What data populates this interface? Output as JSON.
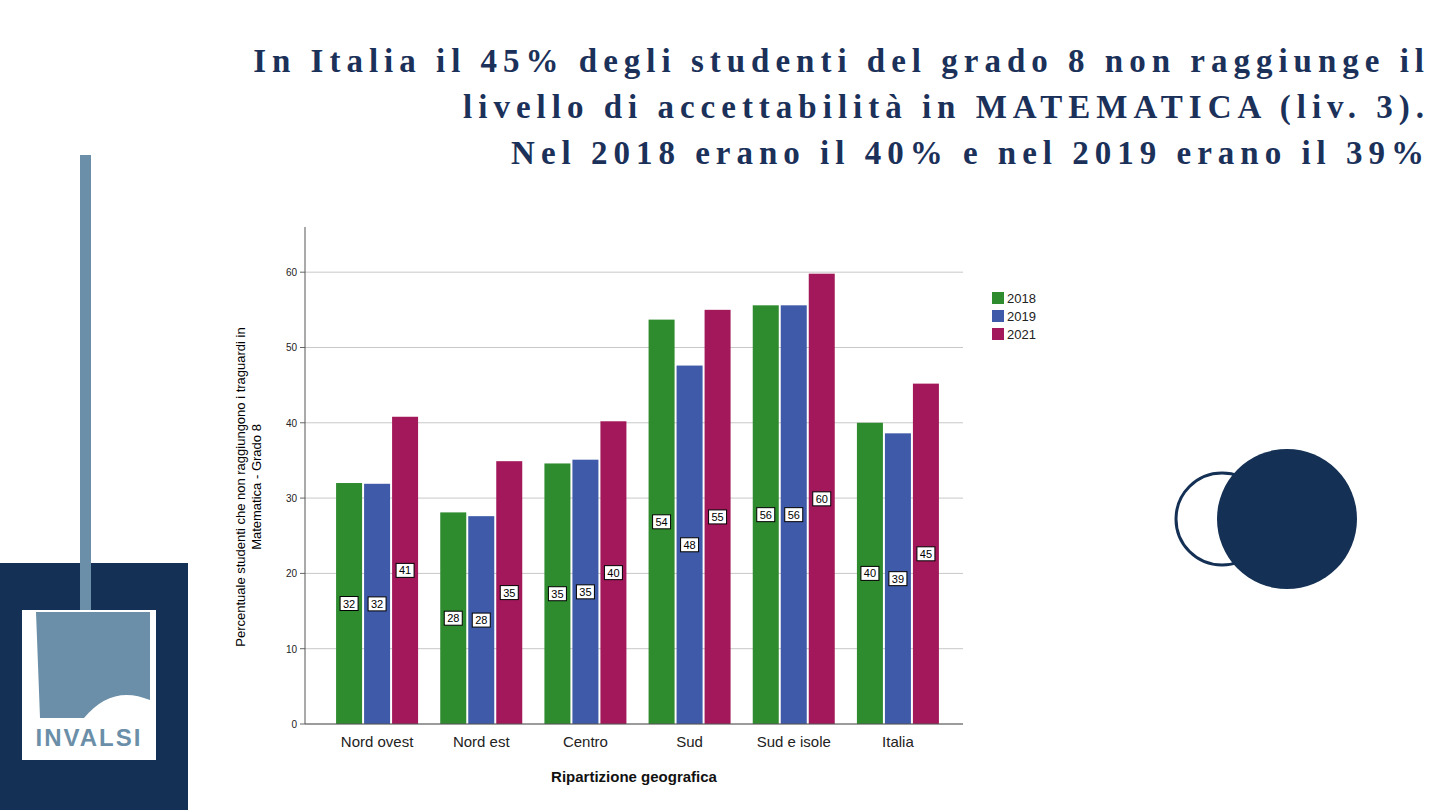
{
  "logo_text": "INVALSI",
  "chart_data": {
    "type": "bar",
    "title": "In Italia il 45% degli studenti del grado 8 non raggiunge il\nlivello di accettabilità in MATEMATICA (liv. 3).\nNel 2018 erano il 40% e nel 2019 erano il 39%",
    "x_label": "Ripartizione geografica",
    "y_label": "Percentuale studenti che non raggiungono i traguardi in\nMatematica - Grado 8",
    "categories": [
      "Nord ovest",
      "Nord est",
      "Centro",
      "Sud",
      "Sud e isole",
      "Italia"
    ],
    "series": [
      {
        "name": "2018",
        "color": "#2e8b2e",
        "values": [
          32.0,
          28.1,
          34.6,
          53.7,
          55.6,
          40.0
        ],
        "value_labels": [
          "32",
          "28",
          "35",
          "54",
          "56",
          "40"
        ]
      },
      {
        "name": "2019",
        "color": "#3f5aa8",
        "values": [
          31.9,
          27.6,
          35.1,
          47.6,
          55.6,
          38.6
        ],
        "value_labels": [
          "32",
          "28",
          "35",
          "48",
          "56",
          "39"
        ]
      },
      {
        "name": "2021",
        "color": "#a3185a",
        "values": [
          40.8,
          34.9,
          40.2,
          55.0,
          59.8,
          45.2
        ],
        "value_labels": [
          "41",
          "35",
          "40",
          "55",
          "60",
          "45"
        ]
      }
    ],
    "ylim": [
      0,
      66
    ],
    "yticks": [
      0,
      10,
      20,
      30,
      40,
      50,
      60
    ],
    "grid": true,
    "legend": "right",
    "data_labels": true
  }
}
